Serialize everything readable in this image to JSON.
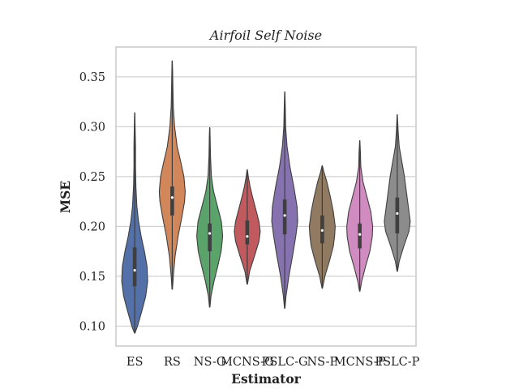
{
  "chart_data": {
    "type": "violin",
    "title": "Airfoil Self Noise",
    "xlabel": "Estimator",
    "ylabel": "MSE",
    "ylim": [
      0.08,
      0.38
    ],
    "yticks": [
      "0.10",
      "0.15",
      "0.20",
      "0.25",
      "0.30",
      "0.35"
    ],
    "grid": true,
    "categories": [
      "ES",
      "RS",
      "NS-G",
      "MCNS-G",
      "PSLC-G",
      "NS-P",
      "MCNS-P",
      "PSLC-P"
    ],
    "colors": [
      "#5470a8",
      "#d2875a",
      "#5aa46b",
      "#c05a5e",
      "#8672ae",
      "#907a62",
      "#d08cc0",
      "#8c8c8c"
    ],
    "series": [
      {
        "min": 0.093,
        "max": 0.314,
        "q1": 0.14,
        "median": 0.156,
        "q3": 0.179
      },
      {
        "min": 0.137,
        "max": 0.366,
        "q1": 0.211,
        "median": 0.229,
        "q3": 0.24
      },
      {
        "min": 0.119,
        "max": 0.299,
        "q1": 0.175,
        "median": 0.193,
        "q3": 0.203
      },
      {
        "min": 0.142,
        "max": 0.257,
        "q1": 0.182,
        "median": 0.19,
        "q3": 0.206
      },
      {
        "min": 0.118,
        "max": 0.335,
        "q1": 0.192,
        "median": 0.211,
        "q3": 0.227
      },
      {
        "min": 0.138,
        "max": 0.261,
        "q1": 0.183,
        "median": 0.196,
        "q3": 0.211
      },
      {
        "min": 0.135,
        "max": 0.286,
        "q1": 0.178,
        "median": 0.192,
        "q3": 0.203
      },
      {
        "min": 0.155,
        "max": 0.312,
        "q1": 0.193,
        "median": 0.213,
        "q3": 0.229
      }
    ]
  }
}
